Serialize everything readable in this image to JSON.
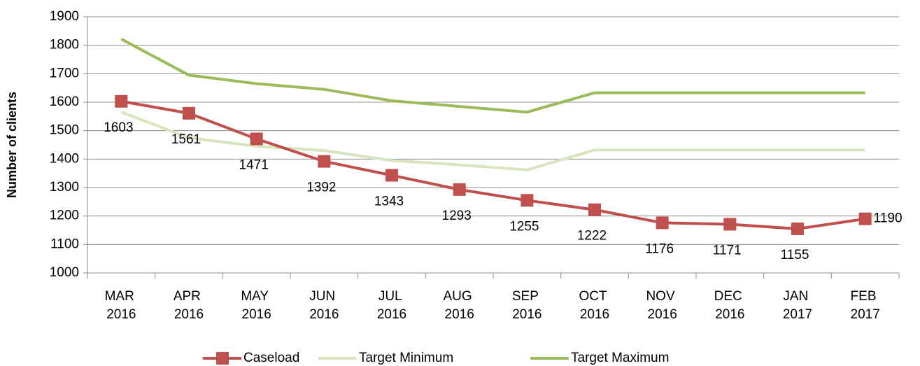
{
  "chart_data": {
    "type": "line",
    "y_label": "Number of clients",
    "categories": [
      "MAR 2016",
      "APR 2016",
      "MAY 2016",
      "JUN 2016",
      "JUL 2016",
      "AUG 2016",
      "SEP 2016",
      "OCT 2016",
      "NOV 2016",
      "DEC 2016",
      "JAN 2017",
      "FEB 2017"
    ],
    "series": [
      {
        "name": "Caseload",
        "color": "#c0504d",
        "marker": "square",
        "data_labels": true,
        "values": [
          1603,
          1561,
          1471,
          1392,
          1343,
          1293,
          1255,
          1222,
          1176,
          1171,
          1155,
          1190
        ]
      },
      {
        "name": "Target Minimum",
        "color": "#d7e4bd",
        "values": [
          1565,
          1475,
          1445,
          1430,
          1395,
          1380,
          1362,
          1432,
          1432,
          1432,
          1432,
          1432
        ]
      },
      {
        "name": "Target Maximum",
        "color": "#9bbb59",
        "values": [
          1822,
          1695,
          1665,
          1645,
          1605,
          1585,
          1565,
          1633,
          1633,
          1633,
          1633,
          1633
        ]
      }
    ],
    "ylim": [
      1000,
      1900
    ],
    "yticks": [
      1000,
      1100,
      1200,
      1300,
      1400,
      1500,
      1600,
      1700,
      1800,
      1900
    ],
    "grid": true,
    "legend": "bottom"
  }
}
